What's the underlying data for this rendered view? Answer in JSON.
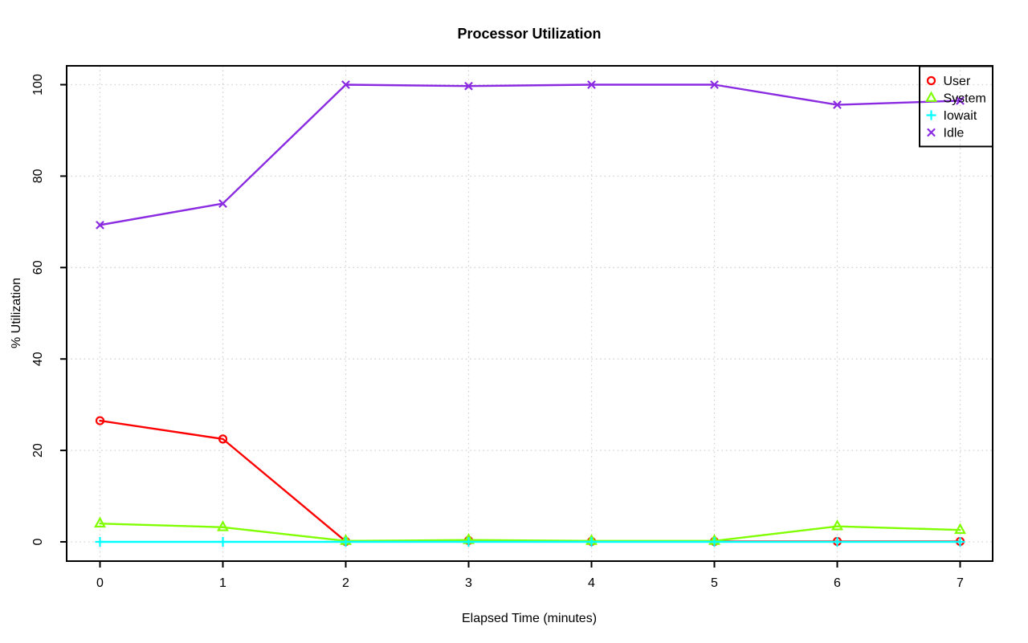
{
  "chart_data": {
    "type": "line",
    "title": "Processor Utilization",
    "xlabel": "Elapsed Time (minutes)",
    "ylabel": "% Utilization",
    "x": [
      0,
      1,
      2,
      3,
      4,
      5,
      6,
      7
    ],
    "xticks": [
      0,
      1,
      2,
      3,
      4,
      5,
      6,
      7
    ],
    "yticks": [
      0,
      20,
      40,
      60,
      80,
      100
    ],
    "xlim": [
      -0.28,
      7.28
    ],
    "ylim": [
      -4.2,
      104.2
    ],
    "grid": {
      "show": true,
      "style": "dotted",
      "color": "#D3D3D3"
    },
    "legend": {
      "position": "topright",
      "border": true,
      "background": "transparent"
    },
    "series": [
      {
        "name": "User",
        "color": "#FF0000",
        "marker": "circle",
        "values": [
          26.5,
          22.5,
          0.1,
          0.3,
          0.1,
          0.1,
          0.1,
          0.1
        ]
      },
      {
        "name": "System",
        "color": "#80FF00",
        "marker": "triangle",
        "values": [
          4.0,
          3.2,
          0.2,
          0.4,
          0.2,
          0.2,
          3.4,
          2.6
        ]
      },
      {
        "name": "Iowait",
        "color": "#00FFFF",
        "marker": "plus",
        "values": [
          0,
          0,
          0,
          0,
          0,
          0,
          0,
          0
        ]
      },
      {
        "name": "Idle",
        "color": "#8A2BE2",
        "marker": "x",
        "values": [
          69.3,
          74.0,
          100.0,
          99.7,
          100.0,
          100.0,
          95.6,
          96.5
        ]
      }
    ]
  }
}
